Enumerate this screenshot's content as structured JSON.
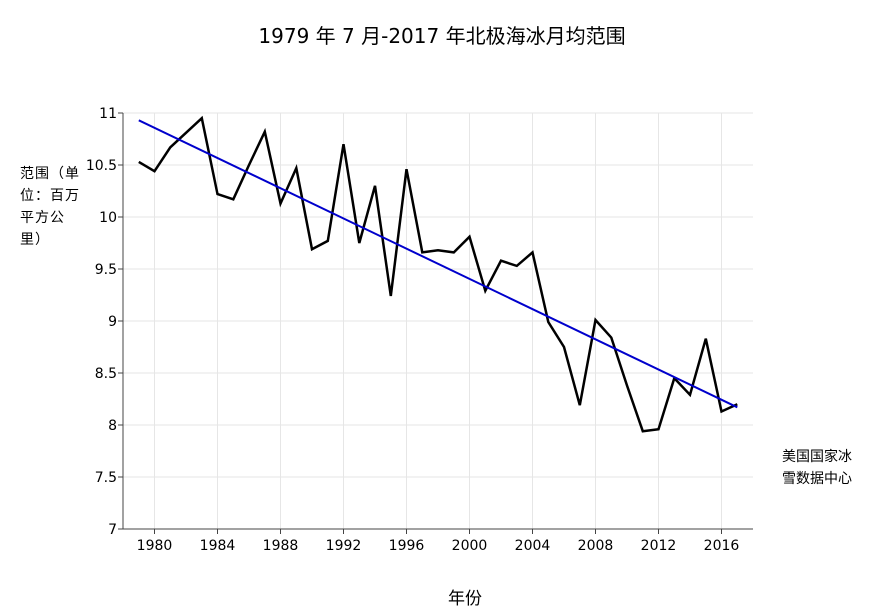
{
  "chart_data": {
    "type": "line",
    "title": "1979 年 7 月-2017 年北极海冰月均范围",
    "xlabel": "年份",
    "ylabel": "范围（单位：百万平方公里）",
    "source_note": "美国国家冰雪数据中心",
    "xlim": [
      1978,
      2018
    ],
    "ylim": [
      7,
      11
    ],
    "xticks": [
      1980,
      1984,
      1988,
      1992,
      1996,
      2000,
      2004,
      2008,
      2012,
      2016
    ],
    "yticks": [
      7,
      7.5,
      8,
      8.5,
      9,
      9.5,
      10,
      10.5,
      11
    ],
    "ytick_labels": [
      "7",
      "7.5",
      "8",
      "8.5",
      "9",
      "9.5",
      "10",
      "10.5",
      "11"
    ],
    "grid": true,
    "series": [
      {
        "style": "line",
        "color": "#000000",
        "x": [
          1979,
          1980,
          1981,
          1982,
          1983,
          1984,
          1985,
          1986,
          1987,
          1988,
          1989,
          1990,
          1991,
          1992,
          1993,
          1994,
          1995,
          1996,
          1997,
          1998,
          1999,
          2000,
          2001,
          2002,
          2003,
          2004,
          2005,
          2006,
          2007,
          2008,
          2009,
          2010,
          2011,
          2012,
          2013,
          2014,
          2015,
          2016,
          2017
        ],
        "y": [
          10.53,
          10.44,
          10.67,
          10.81,
          10.95,
          10.22,
          10.17,
          10.5,
          10.82,
          10.13,
          10.47,
          9.69,
          9.77,
          10.7,
          9.75,
          10.3,
          9.24,
          10.46,
          9.66,
          9.68,
          9.66,
          9.81,
          9.29,
          9.58,
          9.53,
          9.66,
          8.99,
          8.75,
          8.19,
          9.01,
          8.84,
          8.38,
          7.94,
          7.96,
          8.45,
          8.29,
          8.83,
          8.13,
          8.2
        ]
      },
      {
        "style": "trendline",
        "color": "#0000cc",
        "x": [
          1979,
          2017
        ],
        "y": [
          10.93,
          8.17
        ]
      }
    ]
  }
}
